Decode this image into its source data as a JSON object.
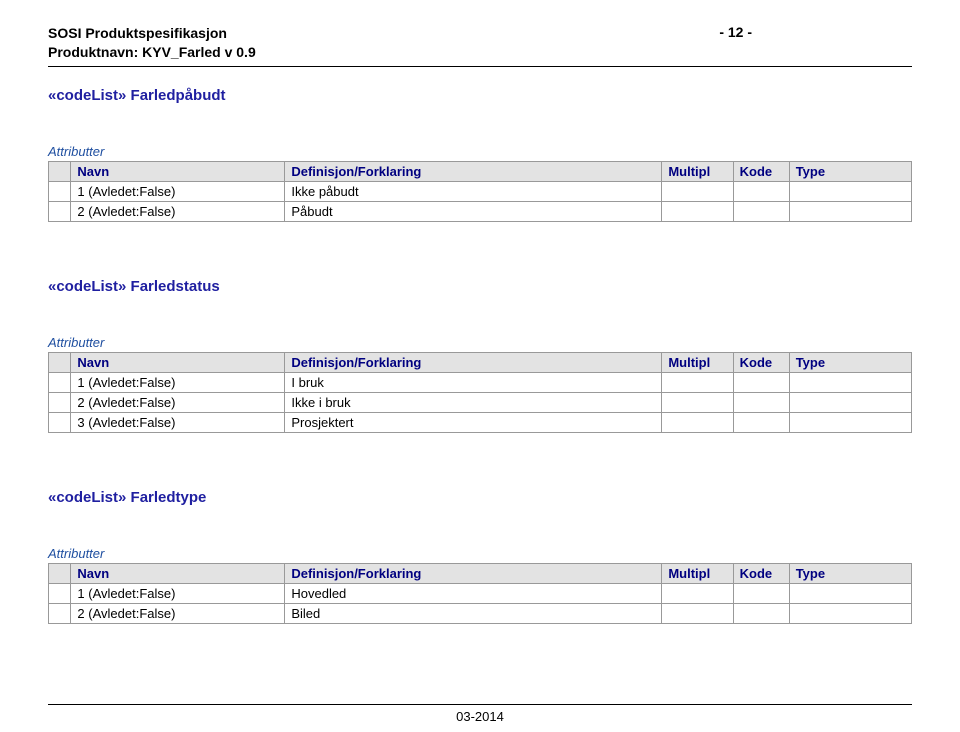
{
  "header": {
    "line1": "SOSI Produktspesifikasjon",
    "line2": "Produktnavn: KYV_Farled v 0.9",
    "page_num": "- 12 -"
  },
  "sections": [
    {
      "title": "«codeList» Farledpåbudt",
      "attr_label": "Attributter",
      "columns": {
        "navn": "Navn",
        "def": "Definisjon/Forklaring",
        "multi": "Multipl",
        "kode": "Kode",
        "type": "Type"
      },
      "rows": [
        {
          "navn": "1 (Avledet:False)",
          "def": "Ikke påbudt",
          "multi": "",
          "kode": "",
          "type": ""
        },
        {
          "navn": "2 (Avledet:False)",
          "def": "Påbudt",
          "multi": "",
          "kode": "",
          "type": ""
        }
      ]
    },
    {
      "title": "«codeList» Farledstatus",
      "attr_label": "Attributter",
      "columns": {
        "navn": "Navn",
        "def": "Definisjon/Forklaring",
        "multi": "Multipl",
        "kode": "Kode",
        "type": "Type"
      },
      "rows": [
        {
          "navn": "1 (Avledet:False)",
          "def": "I bruk",
          "multi": "",
          "kode": "",
          "type": ""
        },
        {
          "navn": "2 (Avledet:False)",
          "def": "Ikke i bruk",
          "multi": "",
          "kode": "",
          "type": ""
        },
        {
          "navn": "3 (Avledet:False)",
          "def": "Prosjektert",
          "multi": "",
          "kode": "",
          "type": ""
        }
      ]
    },
    {
      "title": "«codeList» Farledtype",
      "attr_label": "Attributter",
      "columns": {
        "navn": "Navn",
        "def": "Definisjon/Forklaring",
        "multi": "Multipl",
        "kode": "Kode",
        "type": "Type"
      },
      "rows": [
        {
          "navn": "1 (Avledet:False)",
          "def": "Hovedled",
          "multi": "",
          "kode": "",
          "type": ""
        },
        {
          "navn": "2 (Avledet:False)",
          "def": "Biled",
          "multi": "",
          "kode": "",
          "type": ""
        }
      ]
    }
  ],
  "footer": "03-2014",
  "style": {
    "title_color": "#1f1fa0",
    "attr_label_color": "#1f4fa0",
    "th_bg": "#e3e3e3",
    "th_color": "#000080",
    "border_color": "#999999"
  }
}
